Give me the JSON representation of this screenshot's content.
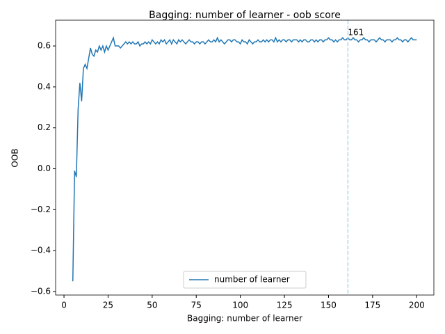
{
  "chart_data": {
    "type": "line",
    "title": "Bagging: number of learner - oob score",
    "xlabel": "Bagging: number of learner",
    "ylabel": "OOB",
    "x": [
      5,
      6,
      7,
      8,
      9,
      10,
      11,
      12,
      13,
      14,
      15,
      16,
      17,
      18,
      19,
      20,
      21,
      22,
      23,
      24,
      25,
      26,
      27,
      28,
      29,
      30,
      31,
      32,
      33,
      34,
      35,
      36,
      37,
      38,
      39,
      40,
      41,
      42,
      43,
      44,
      45,
      46,
      47,
      48,
      49,
      50,
      51,
      52,
      53,
      54,
      55,
      56,
      57,
      58,
      59,
      60,
      61,
      62,
      63,
      64,
      65,
      66,
      67,
      68,
      69,
      70,
      71,
      72,
      73,
      74,
      75,
      76,
      77,
      78,
      79,
      80,
      81,
      82,
      83,
      84,
      85,
      86,
      87,
      88,
      89,
      90,
      91,
      92,
      93,
      94,
      95,
      96,
      97,
      98,
      99,
      100,
      101,
      102,
      103,
      104,
      105,
      106,
      107,
      108,
      109,
      110,
      111,
      112,
      113,
      114,
      115,
      116,
      117,
      118,
      119,
      120,
      121,
      122,
      123,
      124,
      125,
      126,
      127,
      128,
      129,
      130,
      131,
      132,
      133,
      134,
      135,
      136,
      137,
      138,
      139,
      140,
      141,
      142,
      143,
      144,
      145,
      146,
      147,
      148,
      149,
      150,
      151,
      152,
      153,
      154,
      155,
      156,
      157,
      158,
      159,
      160,
      161,
      162,
      163,
      164,
      165,
      166,
      167,
      168,
      169,
      170,
      171,
      172,
      173,
      174,
      175,
      176,
      177,
      178,
      179,
      180,
      181,
      182,
      183,
      184,
      185,
      186,
      187,
      188,
      189,
      190,
      191,
      192,
      193,
      194,
      195,
      196,
      197,
      198,
      199,
      200
    ],
    "series": [
      {
        "name": "number of learner",
        "color": "#1f77b4",
        "values": [
          -0.55,
          -0.01,
          -0.04,
          0.29,
          0.42,
          0.33,
          0.49,
          0.51,
          0.49,
          0.54,
          0.59,
          0.56,
          0.55,
          0.58,
          0.57,
          0.6,
          0.58,
          0.6,
          0.57,
          0.6,
          0.58,
          0.6,
          0.62,
          0.64,
          0.6,
          0.6,
          0.6,
          0.59,
          0.6,
          0.61,
          0.62,
          0.61,
          0.62,
          0.61,
          0.62,
          0.61,
          0.61,
          0.62,
          0.6,
          0.61,
          0.61,
          0.62,
          0.61,
          0.62,
          0.61,
          0.63,
          0.62,
          0.61,
          0.62,
          0.61,
          0.63,
          0.62,
          0.63,
          0.61,
          0.62,
          0.63,
          0.61,
          0.63,
          0.62,
          0.61,
          0.63,
          0.62,
          0.63,
          0.62,
          0.61,
          0.62,
          0.63,
          0.62,
          0.62,
          0.61,
          0.62,
          0.62,
          0.61,
          0.62,
          0.62,
          0.61,
          0.62,
          0.63,
          0.62,
          0.62,
          0.63,
          0.62,
          0.64,
          0.62,
          0.63,
          0.62,
          0.61,
          0.62,
          0.63,
          0.63,
          0.62,
          0.63,
          0.63,
          0.62,
          0.62,
          0.61,
          0.63,
          0.62,
          0.62,
          0.61,
          0.63,
          0.62,
          0.61,
          0.62,
          0.62,
          0.63,
          0.62,
          0.62,
          0.63,
          0.62,
          0.63,
          0.62,
          0.63,
          0.63,
          0.62,
          0.64,
          0.62,
          0.63,
          0.62,
          0.63,
          0.63,
          0.62,
          0.63,
          0.63,
          0.62,
          0.63,
          0.63,
          0.63,
          0.62,
          0.63,
          0.62,
          0.63,
          0.63,
          0.62,
          0.62,
          0.63,
          0.63,
          0.62,
          0.63,
          0.62,
          0.63,
          0.63,
          0.62,
          0.63,
          0.63,
          0.64,
          0.63,
          0.63,
          0.62,
          0.63,
          0.62,
          0.63,
          0.63,
          0.64,
          0.63,
          0.63,
          0.64,
          0.63,
          0.63,
          0.64,
          0.63,
          0.63,
          0.62,
          0.63,
          0.63,
          0.64,
          0.63,
          0.63,
          0.62,
          0.63,
          0.63,
          0.63,
          0.62,
          0.63,
          0.64,
          0.63,
          0.63,
          0.62,
          0.63,
          0.63,
          0.63,
          0.62,
          0.63,
          0.63,
          0.64,
          0.63,
          0.63,
          0.62,
          0.63,
          0.63,
          0.62,
          0.63,
          0.64,
          0.63,
          0.63,
          0.63
        ]
      }
    ],
    "vline": {
      "x": 161,
      "color": "#add8e6"
    },
    "xlim": [
      -4.75,
      209.75
    ],
    "ylim": [
      -0.617,
      0.726
    ],
    "xticks": [
      0,
      25,
      50,
      75,
      100,
      125,
      150,
      175,
      200
    ],
    "yticks": [
      {
        "value": -0.6,
        "label": "−0.6"
      },
      {
        "value": -0.4,
        "label": "−0.4"
      },
      {
        "value": -0.2,
        "label": "−0.2"
      },
      {
        "value": 0.0,
        "label": "0.0"
      },
      0.2,
      0.4,
      0.6
    ],
    "legend": "lower center"
  }
}
